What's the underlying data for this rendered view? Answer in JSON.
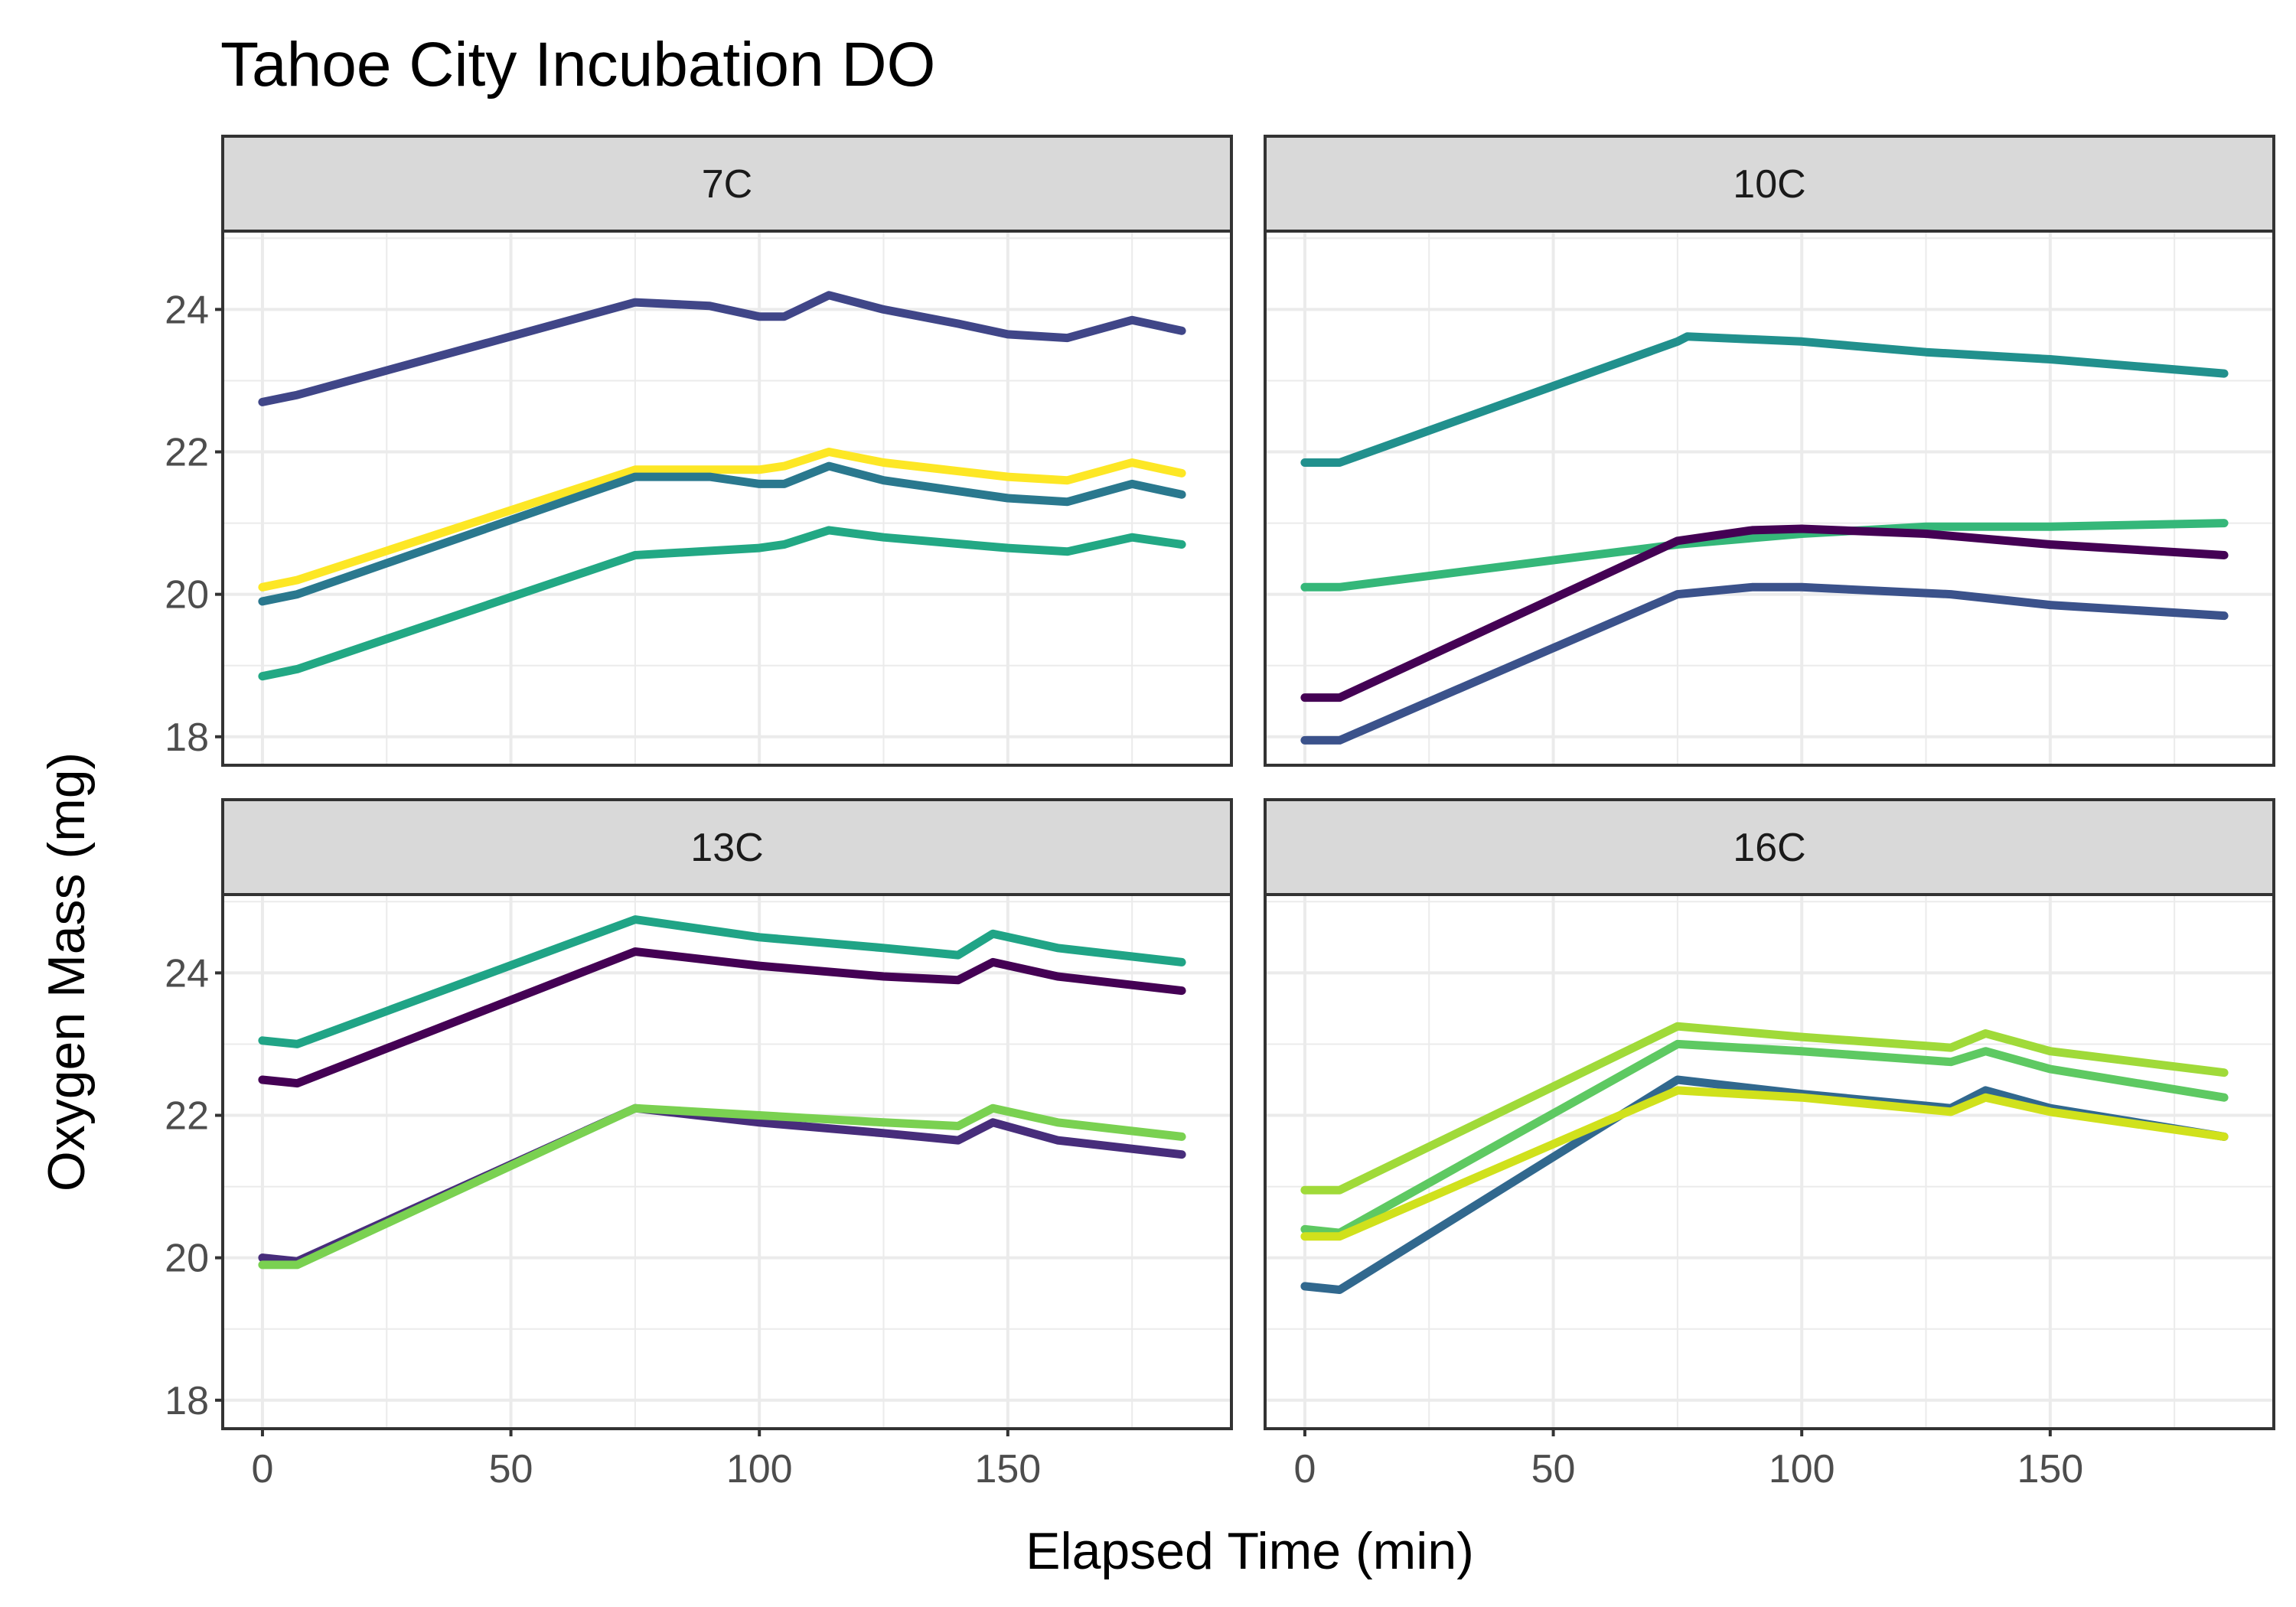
{
  "chart_data": {
    "type": "line",
    "title": "Tahoe City Incubation DO",
    "xlabel": "Elapsed Time (min)",
    "ylabel": "Oxygen Mass (mg)",
    "xlim": [
      -8,
      195
    ],
    "ylim": [
      17.6,
      25.1
    ],
    "xticks": [
      0,
      50,
      100,
      150
    ],
    "yticks": [
      18,
      20,
      22,
      24
    ],
    "grid": true,
    "legend": "none",
    "panels": [
      {
        "strip": "7C",
        "series": [
          {
            "color": "#404688",
            "points": [
              [
                0,
                22.7
              ],
              [
                7,
                22.8
              ],
              [
                75,
                24.1
              ],
              [
                90,
                24.05
              ],
              [
                100,
                23.9
              ],
              [
                105,
                23.9
              ],
              [
                114,
                24.2
              ],
              [
                125,
                24.0
              ],
              [
                140,
                23.8
              ],
              [
                150,
                23.65
              ],
              [
                162,
                23.6
              ],
              [
                175,
                23.85
              ],
              [
                185,
                23.7
              ]
            ]
          },
          {
            "color": "#fde725",
            "points": [
              [
                0,
                20.1
              ],
              [
                7,
                20.2
              ],
              [
                75,
                21.75
              ],
              [
                100,
                21.75
              ],
              [
                105,
                21.8
              ],
              [
                114,
                22.0
              ],
              [
                125,
                21.85
              ],
              [
                150,
                21.65
              ],
              [
                162,
                21.6
              ],
              [
                175,
                21.85
              ],
              [
                185,
                21.7
              ]
            ]
          },
          {
            "color": "#2a788e",
            "points": [
              [
                0,
                19.9
              ],
              [
                7,
                20.0
              ],
              [
                75,
                21.65
              ],
              [
                90,
                21.65
              ],
              [
                100,
                21.55
              ],
              [
                105,
                21.55
              ],
              [
                114,
                21.8
              ],
              [
                125,
                21.6
              ],
              [
                140,
                21.45
              ],
              [
                150,
                21.35
              ],
              [
                162,
                21.3
              ],
              [
                175,
                21.55
              ],
              [
                185,
                21.4
              ]
            ]
          },
          {
            "color": "#22a884",
            "points": [
              [
                0,
                18.85
              ],
              [
                7,
                18.95
              ],
              [
                75,
                20.55
              ],
              [
                100,
                20.65
              ],
              [
                105,
                20.7
              ],
              [
                114,
                20.9
              ],
              [
                125,
                20.8
              ],
              [
                150,
                20.65
              ],
              [
                162,
                20.6
              ],
              [
                175,
                20.8
              ],
              [
                185,
                20.7
              ]
            ]
          }
        ]
      },
      {
        "strip": "10C",
        "series": [
          {
            "color": "#21908d",
            "points": [
              [
                0,
                21.85
              ],
              [
                7,
                21.85
              ],
              [
                75,
                23.55
              ],
              [
                77,
                23.62
              ],
              [
                100,
                23.55
              ],
              [
                125,
                23.4
              ],
              [
                150,
                23.3
              ],
              [
                185,
                23.1
              ]
            ]
          },
          {
            "color": "#35b779",
            "points": [
              [
                0,
                20.1
              ],
              [
                7,
                20.1
              ],
              [
                75,
                20.7
              ],
              [
                100,
                20.85
              ],
              [
                125,
                20.95
              ],
              [
                150,
                20.95
              ],
              [
                185,
                21.0
              ]
            ]
          },
          {
            "color": "#440154",
            "points": [
              [
                0,
                18.55
              ],
              [
                7,
                18.55
              ],
              [
                75,
                20.75
              ],
              [
                90,
                20.9
              ],
              [
                100,
                20.92
              ],
              [
                125,
                20.85
              ],
              [
                150,
                20.7
              ],
              [
                185,
                20.55
              ]
            ]
          },
          {
            "color": "#3b528b",
            "points": [
              [
                0,
                17.95
              ],
              [
                7,
                17.95
              ],
              [
                75,
                20.0
              ],
              [
                90,
                20.1
              ],
              [
                100,
                20.1
              ],
              [
                130,
                20.0
              ],
              [
                150,
                19.85
              ],
              [
                185,
                19.7
              ]
            ]
          }
        ]
      },
      {
        "strip": "13C",
        "series": [
          {
            "color": "#20a486",
            "points": [
              [
                0,
                23.05
              ],
              [
                7,
                23.0
              ],
              [
                75,
                24.75
              ],
              [
                100,
                24.5
              ],
              [
                125,
                24.35
              ],
              [
                140,
                24.25
              ],
              [
                147,
                24.55
              ],
              [
                160,
                24.35
              ],
              [
                185,
                24.15
              ]
            ]
          },
          {
            "color": "#440154",
            "points": [
              [
                0,
                22.5
              ],
              [
                7,
                22.45
              ],
              [
                75,
                24.3
              ],
              [
                100,
                24.1
              ],
              [
                125,
                23.95
              ],
              [
                140,
                23.9
              ],
              [
                147,
                24.15
              ],
              [
                160,
                23.95
              ],
              [
                185,
                23.75
              ]
            ]
          },
          {
            "color": "#472d7b",
            "points": [
              [
                0,
                20.0
              ],
              [
                7,
                19.95
              ],
              [
                75,
                22.1
              ],
              [
                100,
                21.9
              ],
              [
                125,
                21.75
              ],
              [
                140,
                21.65
              ],
              [
                147,
                21.9
              ],
              [
                160,
                21.65
              ],
              [
                185,
                21.45
              ]
            ]
          },
          {
            "color": "#7ad151",
            "points": [
              [
                0,
                19.9
              ],
              [
                7,
                19.9
              ],
              [
                75,
                22.1
              ],
              [
                100,
                22.0
              ],
              [
                125,
                21.9
              ],
              [
                140,
                21.85
              ],
              [
                147,
                22.1
              ],
              [
                160,
                21.9
              ],
              [
                185,
                21.7
              ]
            ]
          }
        ]
      },
      {
        "strip": "16C",
        "series": [
          {
            "color": "#a0da39",
            "points": [
              [
                0,
                20.95
              ],
              [
                7,
                20.95
              ],
              [
                75,
                23.25
              ],
              [
                100,
                23.1
              ],
              [
                130,
                22.95
              ],
              [
                137,
                23.15
              ],
              [
                150,
                22.9
              ],
              [
                185,
                22.6
              ]
            ]
          },
          {
            "color": "#5ec962",
            "points": [
              [
                0,
                20.4
              ],
              [
                7,
                20.35
              ],
              [
                75,
                23.0
              ],
              [
                100,
                22.9
              ],
              [
                130,
                22.75
              ],
              [
                137,
                22.9
              ],
              [
                150,
                22.65
              ],
              [
                185,
                22.25
              ]
            ]
          },
          {
            "color": "#31688e",
            "points": [
              [
                0,
                19.6
              ],
              [
                7,
                19.55
              ],
              [
                75,
                22.5
              ],
              [
                100,
                22.3
              ],
              [
                130,
                22.1
              ],
              [
                137,
                22.35
              ],
              [
                150,
                22.1
              ],
              [
                185,
                21.7
              ]
            ]
          },
          {
            "color": "#d0e11c",
            "points": [
              [
                0,
                20.3
              ],
              [
                7,
                20.3
              ],
              [
                75,
                22.35
              ],
              [
                100,
                22.25
              ],
              [
                130,
                22.05
              ],
              [
                137,
                22.25
              ],
              [
                150,
                22.05
              ],
              [
                185,
                21.7
              ]
            ]
          }
        ]
      }
    ]
  }
}
